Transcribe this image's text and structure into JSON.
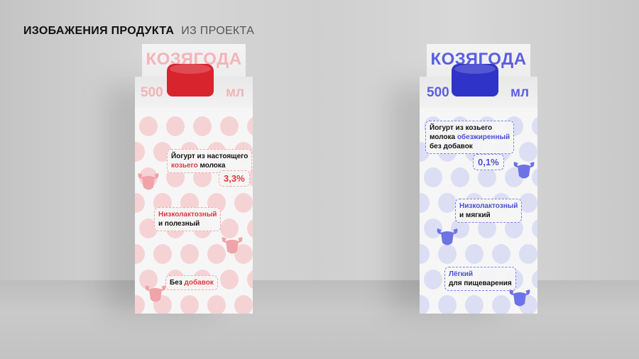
{
  "heading": {
    "primary": "ИЗОБАЖЕНИЯ ПРОДУКТА",
    "secondary": "ИЗ ПРОЕКТА"
  },
  "colors": {
    "red": "#e0383e",
    "red_light": "#f4c9cb",
    "blue": "#4a4fd8",
    "blue_light": "#d5d7f2"
  },
  "products": [
    {
      "brand": "КОЗЯГОДА",
      "volume": "500",
      "unit": "мл",
      "cap_color": "#d8242c",
      "claim1_a": "Йогурт из настоящего",
      "claim1_accent": "козьего",
      "claim1_b": "молока",
      "fat": "3,3%",
      "claim2_accent": "Низколактозный",
      "claim2_b": "и полезный",
      "claim3_a": "Без",
      "claim3_accent": "добавок"
    },
    {
      "brand": "КОЗЯГОДА",
      "volume": "500",
      "unit": "мл",
      "cap_color": "#2f33c8",
      "claim1_a": "Йогурт из козьего",
      "claim1_b": "молока",
      "claim1_accent": "обезжиренный",
      "claim1_c": "без добавок",
      "fat": "0,1%",
      "claim2_accent": "Низколактозный",
      "claim2_b": "и мягкий",
      "claim3_accent": "Лёгкий",
      "claim3_b": "для пищеварения"
    }
  ]
}
